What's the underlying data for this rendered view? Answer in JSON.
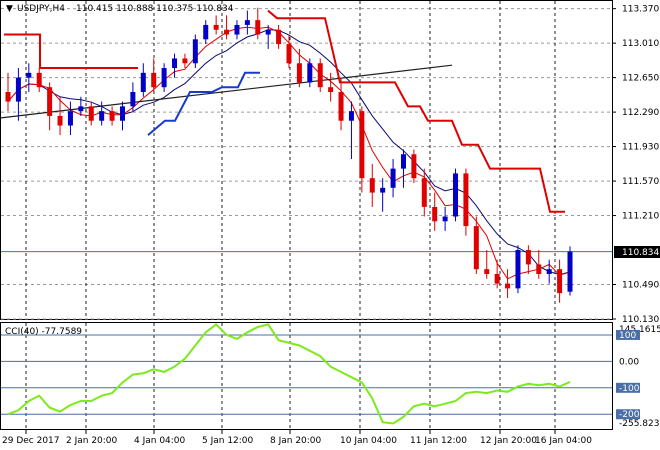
{
  "main": {
    "symbol": "USDJPY,H4",
    "ohlc": "110.415 110.888 110.375 110.834",
    "current_price": "110.834",
    "price_ticks": [
      "113.370",
      "113.010",
      "112.650",
      "112.290",
      "111.930",
      "111.570",
      "111.210",
      "110.490",
      "110.130"
    ]
  },
  "sub": {
    "label": "CCI(40) -77.7589",
    "ticks": [
      "145.1615",
      "100",
      "0.00",
      "-100",
      "-200",
      "-255.8239"
    ]
  },
  "time_axis": [
    "29 Dec 2017",
    "2 Jan 20:00",
    "4 Jan 04:00",
    "5 Jan 12:00",
    "8 Jan 20:00",
    "10 Jan 04:00",
    "11 Jan 12:00",
    "12 Jan 20:00",
    "16 Jan 04:00"
  ],
  "colors": {
    "bull": "#0000c8",
    "bear": "#e00000",
    "ma_fast": "#e00000",
    "ma_slow": "#0a0a7a",
    "envelope": "#e00000",
    "support": "#1a3acc",
    "trend": "#202020",
    "cci": "#7cea1c",
    "grid": "#9a9a9a",
    "hline": "#4a6fa8"
  },
  "chart_data": [
    {
      "type": "candlestick",
      "title": "USDJPY,H4",
      "ylim": [
        110.13,
        113.45
      ],
      "candles": [
        [
          112.5,
          112.7,
          112.3,
          112.4
        ],
        [
          112.4,
          112.75,
          112.2,
          112.65
        ],
        [
          112.65,
          112.8,
          112.5,
          112.7
        ],
        [
          112.7,
          112.75,
          112.5,
          112.55
        ],
        [
          112.55,
          112.6,
          112.1,
          112.25
        ],
        [
          112.25,
          112.45,
          112.05,
          112.15
        ],
        [
          112.15,
          112.4,
          112.05,
          112.3
        ],
        [
          112.3,
          112.45,
          112.25,
          112.35
        ],
        [
          112.35,
          112.4,
          112.15,
          112.2
        ],
        [
          112.2,
          112.4,
          112.15,
          112.3
        ],
        [
          112.3,
          112.35,
          112.15,
          112.2
        ],
        [
          112.2,
          112.4,
          112.1,
          112.35
        ],
        [
          112.35,
          112.6,
          112.3,
          112.5
        ],
        [
          112.5,
          112.8,
          112.45,
          112.7
        ],
        [
          112.7,
          112.85,
          112.5,
          112.55
        ],
        [
          112.55,
          112.8,
          112.5,
          112.75
        ],
        [
          112.75,
          112.9,
          112.65,
          112.85
        ],
        [
          112.85,
          112.9,
          112.75,
          112.8
        ],
        [
          112.8,
          113.1,
          112.75,
          113.05
        ],
        [
          113.05,
          113.25,
          113.0,
          113.2
        ],
        [
          113.2,
          113.3,
          113.1,
          113.15
        ],
        [
          113.15,
          113.3,
          113.05,
          113.1
        ],
        [
          113.1,
          113.25,
          113.05,
          113.2
        ],
        [
          113.2,
          113.35,
          113.1,
          113.25
        ],
        [
          113.25,
          113.38,
          113.05,
          113.1
        ],
        [
          113.1,
          113.2,
          112.95,
          113.15
        ],
        [
          113.15,
          113.2,
          112.95,
          113.0
        ],
        [
          113.0,
          113.1,
          112.75,
          112.8
        ],
        [
          112.8,
          112.95,
          112.55,
          112.6
        ],
        [
          112.6,
          112.85,
          112.55,
          112.8
        ],
        [
          112.8,
          112.85,
          112.5,
          112.55
        ],
        [
          112.55,
          112.7,
          112.4,
          112.5
        ],
        [
          112.5,
          112.65,
          112.1,
          112.2
        ],
        [
          112.2,
          112.4,
          111.8,
          112.3
        ],
        [
          112.3,
          112.35,
          111.45,
          111.6
        ],
        [
          111.6,
          111.75,
          111.3,
          111.45
        ],
        [
          111.45,
          111.6,
          111.25,
          111.5
        ],
        [
          111.5,
          111.8,
          111.4,
          111.7
        ],
        [
          111.7,
          111.9,
          111.5,
          111.85
        ],
        [
          111.85,
          111.9,
          111.55,
          111.6
        ],
        [
          111.6,
          111.7,
          111.2,
          111.3
        ],
        [
          111.3,
          111.45,
          111.05,
          111.15
        ],
        [
          111.15,
          111.3,
          111.05,
          111.2
        ],
        [
          111.2,
          111.7,
          111.15,
          111.65
        ],
        [
          111.65,
          111.7,
          111.0,
          111.1
        ],
        [
          111.1,
          111.2,
          110.6,
          110.65
        ],
        [
          110.65,
          110.85,
          110.55,
          110.6
        ],
        [
          110.6,
          110.75,
          110.45,
          110.5
        ],
        [
          110.5,
          110.65,
          110.35,
          110.45
        ],
        [
          110.45,
          110.9,
          110.4,
          110.85
        ],
        [
          110.85,
          110.9,
          110.6,
          110.7
        ],
        [
          110.7,
          110.85,
          110.55,
          110.6
        ],
        [
          110.6,
          110.75,
          110.5,
          110.65
        ],
        [
          110.65,
          110.75,
          110.3,
          110.4
        ],
        [
          110.415,
          110.888,
          110.375,
          110.834
        ]
      ],
      "current": 110.834
    },
    {
      "type": "line",
      "title": "CCI(40)",
      "ylim": [
        -255.8239,
        145.1615
      ],
      "levels": [
        100,
        0,
        -100,
        -200
      ],
      "values": [
        -200,
        -185,
        -150,
        -130,
        -175,
        -190,
        -165,
        -150,
        -150,
        -130,
        -120,
        -80,
        -50,
        -45,
        -30,
        -40,
        -20,
        10,
        60,
        110,
        140,
        100,
        85,
        110,
        130,
        140,
        80,
        70,
        60,
        40,
        20,
        -20,
        -40,
        -60,
        -80,
        -140,
        -230,
        -235,
        -210,
        -170,
        -160,
        -170,
        -160,
        -150,
        -120,
        -115,
        -120,
        -110,
        -115,
        -95,
        -85,
        -90,
        -85,
        -95,
        -77.7589
      ]
    }
  ]
}
